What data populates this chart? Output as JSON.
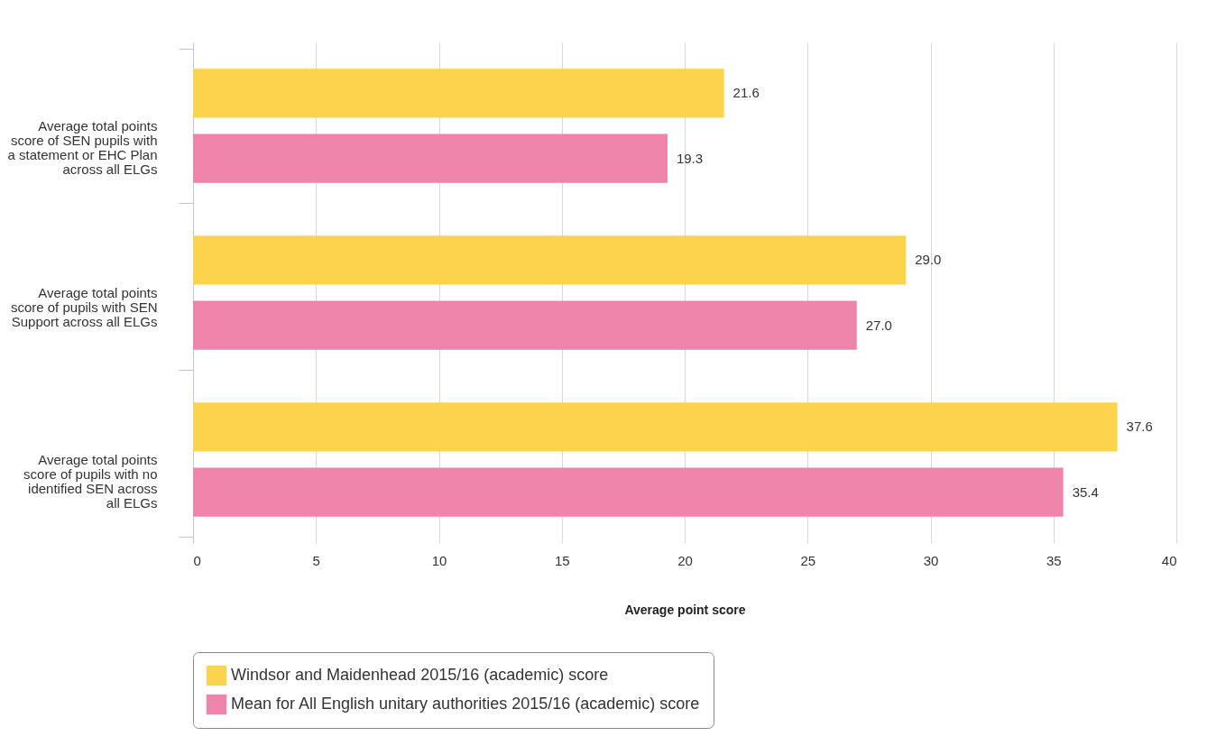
{
  "chart_data": {
    "type": "bar",
    "orientation": "horizontal",
    "xlabel": "Average point score",
    "categories": [
      "Average total points score of SEN pupils with a statement or EHC Plan across all ELGs",
      "Average total points score of pupils with SEN Support across all ELGs",
      "Average total points score of pupils with no identified SEN across all ELGs"
    ],
    "series": [
      {
        "name": "Windsor and Maidenhead 2015/16 (academic) score",
        "color": "#fcd34d",
        "values": [
          21.6,
          29.0,
          37.6
        ],
        "value_labels": [
          "21.6",
          "29.0",
          "37.6"
        ]
      },
      {
        "name": "Mean for All English unitary authorities 2015/16 (academic) score",
        "color": "#ef84ab",
        "values": [
          19.3,
          27.0,
          35.4
        ],
        "value_labels": [
          "19.3",
          "27.0",
          "35.4"
        ]
      }
    ],
    "xlim": [
      0,
      40
    ],
    "xticks": [
      0,
      5,
      10,
      15,
      20,
      25,
      30,
      35,
      40
    ],
    "grid": "x",
    "legend": "bottom"
  }
}
